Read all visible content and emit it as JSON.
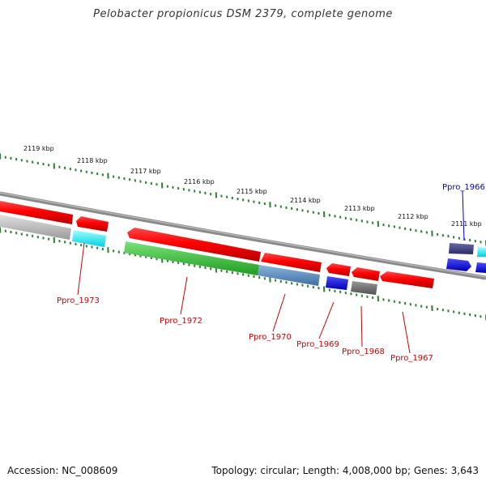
{
  "title": "Pelobacter propionicus DSM 2379, complete genome",
  "footer": {
    "accession": "Accession: NC_008609",
    "summary": "Topology: circular; Length: 4,008,000 bp; Genes: 3,643"
  },
  "colors": {
    "backbone": "#8a8a8a",
    "ticks": "#2e7d32",
    "label_red": "#cc0000",
    "label_blue": "#0000cc"
  },
  "ruler": {
    "labels": [
      "2119 kbp",
      "2118 kbp",
      "2117 kbp",
      "2116 kbp",
      "2115 kbp",
      "2114 kbp",
      "2113 kbp",
      "2112 kbp",
      "2111 kbp"
    ]
  },
  "genes": [
    {
      "label": "Ppro_1973",
      "color": "#cc0000"
    },
    {
      "label": "Ppro_1972",
      "color": "#cc0000"
    },
    {
      "label": "Ppro_1970",
      "color": "#cc0000"
    },
    {
      "label": "Ppro_1969",
      "color": "#cc0000"
    },
    {
      "label": "Ppro_1968",
      "color": "#cc0000"
    },
    {
      "label": "Ppro_1967",
      "color": "#cc0000"
    },
    {
      "label": "Ppro_1966",
      "color": "#0000cc"
    }
  ]
}
